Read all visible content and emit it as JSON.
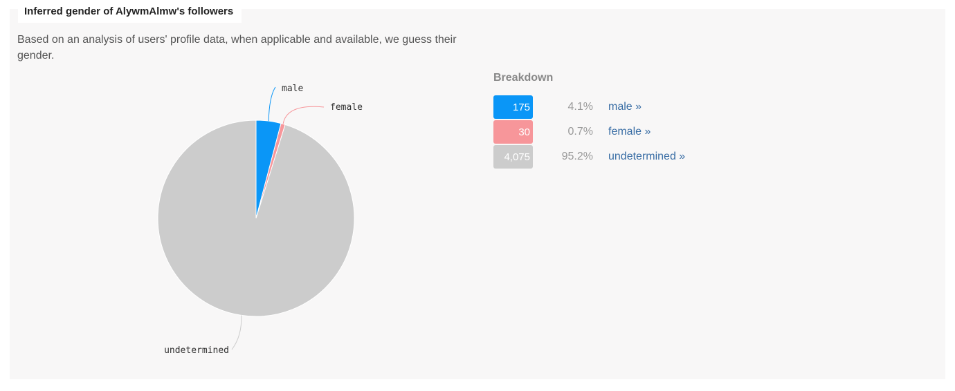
{
  "panel": {
    "title": "Inferred gender of AlywmAlmw's followers",
    "description": "Based on an analysis of users' profile data, when applicable and available, we guess their gender."
  },
  "breakdown": {
    "title": "Breakdown",
    "rows": [
      {
        "count": "175",
        "percent": "4.1%",
        "link": "male »",
        "color": "#0a96f7"
      },
      {
        "count": "30",
        "percent": "0.7%",
        "link": "female »",
        "color": "#f7969a"
      },
      {
        "count": "4,075",
        "percent": "95.2%",
        "link": "undetermined »",
        "color": "#cccccc"
      }
    ]
  },
  "chart_data": {
    "type": "pie",
    "categories": [
      "male",
      "female",
      "undetermined"
    ],
    "values": [
      175,
      30,
      4075
    ],
    "colors": [
      "#0a96f7",
      "#f7969a",
      "#cccccc"
    ],
    "title": "",
    "legend": "none"
  }
}
